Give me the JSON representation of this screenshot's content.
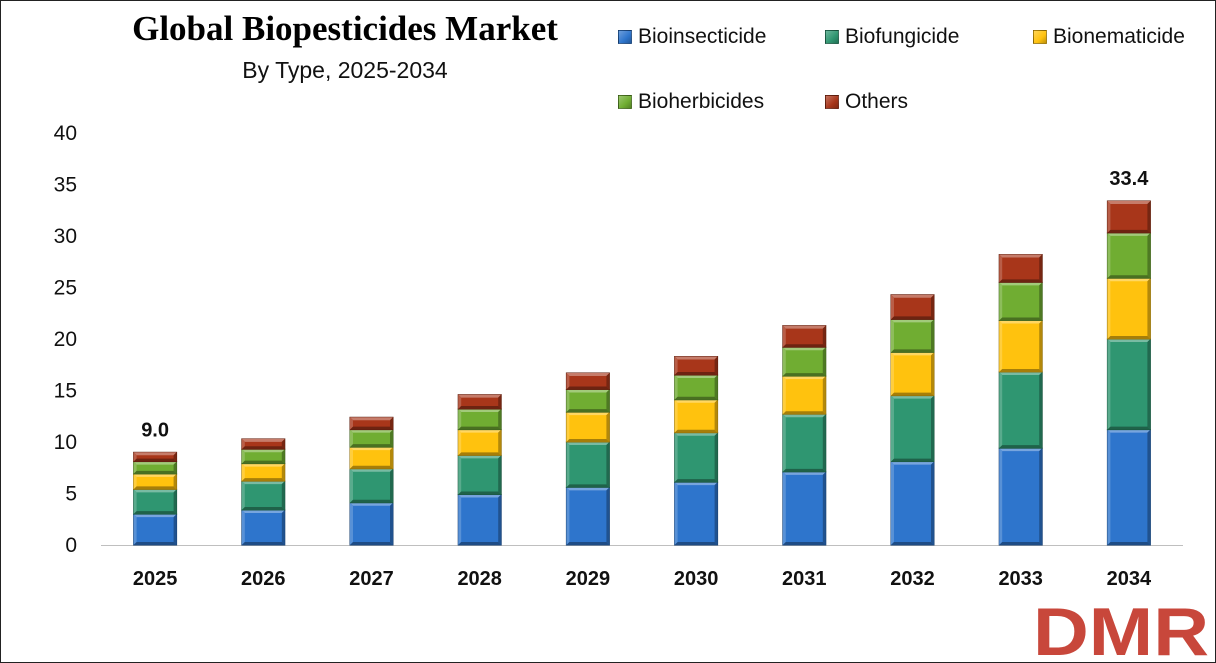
{
  "title": "Global Biopesticides Market",
  "subtitle": "By Type, 2025-2034",
  "brand": "DMR",
  "chart_data": {
    "type": "bar",
    "stacked": true,
    "categories": [
      "2025",
      "2026",
      "2027",
      "2028",
      "2029",
      "2030",
      "2031",
      "2032",
      "2033",
      "2034"
    ],
    "series": [
      {
        "name": "Bioinsecticide",
        "color": "#2e75cc",
        "values": [
          3.0,
          3.4,
          4.1,
          4.9,
          5.6,
          6.1,
          7.1,
          8.1,
          9.4,
          11.2
        ]
      },
      {
        "name": "Biofungicide",
        "color": "#2f9671",
        "values": [
          2.4,
          2.8,
          3.3,
          3.8,
          4.4,
          4.8,
          5.6,
          6.4,
          7.4,
          8.8
        ]
      },
      {
        "name": "Bionematicide",
        "color": "#ffc20e",
        "values": [
          1.5,
          1.7,
          2.1,
          2.5,
          2.9,
          3.2,
          3.7,
          4.2,
          5.0,
          5.9
        ]
      },
      {
        "name": "Bioherbicides",
        "color": "#70ad32",
        "values": [
          1.2,
          1.4,
          1.7,
          2.0,
          2.2,
          2.4,
          2.8,
          3.2,
          3.7,
          4.4
        ]
      },
      {
        "name": "Others",
        "color": "#a8361a",
        "values": [
          0.9,
          1.0,
          1.2,
          1.4,
          1.6,
          1.8,
          2.1,
          2.4,
          2.7,
          3.1
        ]
      }
    ],
    "data_labels": [
      {
        "category": "2025",
        "text": "9.0"
      },
      {
        "category": "2034",
        "text": "33.4"
      }
    ],
    "ylim": [
      0,
      40
    ],
    "yticks": [
      0,
      5,
      10,
      15,
      20,
      25,
      30,
      35,
      40
    ],
    "grid": false,
    "legend_position": "top-right",
    "xlabel": "",
    "ylabel": ""
  }
}
